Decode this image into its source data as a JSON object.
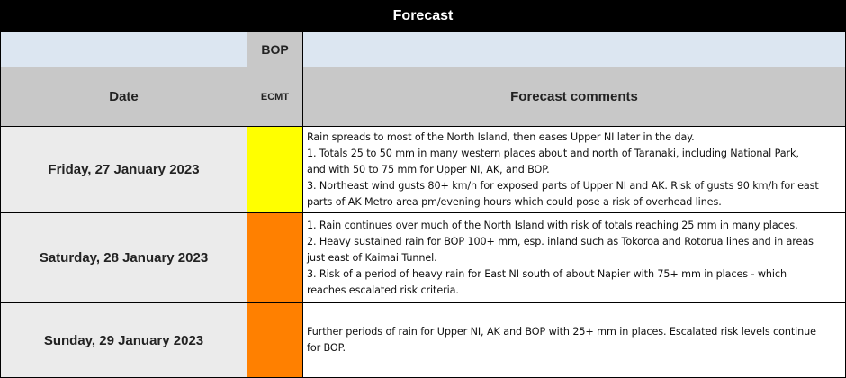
{
  "title": "Forecast",
  "header": {
    "org": "BOP",
    "date_label": "Date",
    "model_label": "ECMT",
    "comments_label": "Forecast comments"
  },
  "colors": {
    "yellow": "#ffff00",
    "orange": "#ff8000"
  },
  "rows": [
    {
      "date": "Friday, 27 January 2023",
      "risk_color": "#ffff00",
      "lines": [
        "Rain spreads to most of the North Island, then eases Upper NI later in the day.",
        "1. Totals 25 to 50 mm in many western places about and north of Taranaki, including National Park,",
        "and with 50 to 75 mm for Upper NI, AK, and BOP.",
        "3. Northeast wind gusts 80+ km/h for exposed parts of Upper NI and AK. Risk of gusts 90 km/h for east",
        "parts of AK Metro area pm/evening hours which could pose a risk of overhead lines."
      ]
    },
    {
      "date": "Saturday, 28 January 2023",
      "risk_color": "#ff8000",
      "lines": [
        "1. Rain continues over much of the North Island with risk of totals reaching 25 mm in many places.",
        "2. Heavy sustained rain for BOP 100+ mm, esp. inland such as Tokoroa and Rotorua lines and in areas",
        "just east of Kaimai Tunnel.",
        "3. Risk of a period of heavy rain for East NI south of about Napier with 75+ mm in places - which",
        "reaches escalated risk criteria."
      ]
    },
    {
      "date": "Sunday, 29 January 2023",
      "risk_color": "#ff8000",
      "lines": [
        "Further periods of rain for Upper NI, AK and BOP with 25+ mm in places. Escalated risk levels continue",
        "for BOP."
      ]
    }
  ]
}
